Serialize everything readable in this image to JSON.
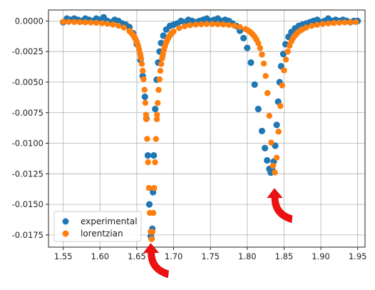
{
  "chart_data": {
    "type": "scatter",
    "title": "",
    "xlabel": "",
    "ylabel": "",
    "xlim": [
      1.53,
      1.96
    ],
    "ylim": [
      -0.0185,
      0.0009
    ],
    "x_ticks": [
      1.55,
      1.6,
      1.65,
      1.7,
      1.75,
      1.8,
      1.85,
      1.9,
      1.95
    ],
    "x_tick_labels": [
      "1.55",
      "1.60",
      "1.65",
      "1.70",
      "1.75",
      "1.80",
      "1.85",
      "1.90",
      "1.95"
    ],
    "y_ticks": [
      0.0,
      -0.0025,
      -0.005,
      -0.0075,
      -0.01,
      -0.0125,
      -0.015,
      -0.0175
    ],
    "y_tick_labels": [
      "0.0000",
      "-0.0025",
      "-0.0050",
      "-0.0075",
      "-0.0100",
      "-0.0125",
      "-0.0150",
      "-0.0175"
    ],
    "grid": true,
    "legend_position": "lower-left",
    "series": [
      {
        "name": "experimental",
        "color": "#1f77b4",
        "x": [
          1.55,
          1.555,
          1.56,
          1.565,
          1.57,
          1.575,
          1.58,
          1.585,
          1.59,
          1.595,
          1.6,
          1.605,
          1.61,
          1.615,
          1.62,
          1.625,
          1.63,
          1.635,
          1.64,
          1.645,
          1.65,
          1.655,
          1.658,
          1.661,
          1.663,
          1.665,
          1.667,
          1.669,
          1.67,
          1.671,
          1.672,
          1.673,
          1.675,
          1.677,
          1.679,
          1.681,
          1.683,
          1.686,
          1.69,
          1.695,
          1.7,
          1.705,
          1.71,
          1.715,
          1.72,
          1.725,
          1.73,
          1.735,
          1.74,
          1.745,
          1.75,
          1.755,
          1.76,
          1.765,
          1.77,
          1.775,
          1.78,
          1.785,
          1.79,
          1.795,
          1.8,
          1.805,
          1.81,
          1.815,
          1.82,
          1.824,
          1.827,
          1.83,
          1.832,
          1.834,
          1.836,
          1.838,
          1.84,
          1.842,
          1.844,
          1.846,
          1.849,
          1.852,
          1.856,
          1.86,
          1.865,
          1.87,
          1.875,
          1.88,
          1.885,
          1.89,
          1.895,
          1.9,
          1.905,
          1.91,
          1.915,
          1.92,
          1.925,
          1.93,
          1.935,
          1.94,
          1.945,
          1.95
        ],
        "y": [
          -0.0001,
          0.0002,
          0.0001,
          0.0002,
          0.0001,
          0.0,
          0.0002,
          0.0001,
          0.0,
          0.0002,
          0.0001,
          0.0003,
          0.0,
          -0.0001,
          0.0001,
          0.0,
          -0.0002,
          -0.0003,
          -0.0005,
          -0.001,
          -0.0019,
          -0.0032,
          -0.0045,
          -0.0062,
          -0.008,
          -0.011,
          -0.015,
          -0.0176,
          -0.0178,
          -0.017,
          -0.014,
          -0.011,
          -0.0072,
          -0.0048,
          -0.0034,
          -0.0025,
          -0.0018,
          -0.0012,
          -0.0007,
          -0.0004,
          -0.0003,
          -0.0002,
          0.0,
          -0.0001,
          0.0001,
          0.0,
          -0.0001,
          0.0,
          0.0001,
          0.0002,
          0.0,
          0.0001,
          0.0002,
          0.0,
          0.0001,
          0.0,
          -0.0002,
          -0.0004,
          -0.0008,
          -0.0014,
          -0.0022,
          -0.0034,
          -0.0052,
          -0.0072,
          -0.009,
          -0.0104,
          -0.0114,
          -0.0121,
          -0.0124,
          -0.0122,
          -0.0115,
          -0.0102,
          -0.0085,
          -0.0066,
          -0.005,
          -0.0037,
          -0.0027,
          -0.0019,
          -0.0013,
          -0.0009,
          -0.0006,
          -0.0004,
          -0.0003,
          -0.0002,
          -0.0001,
          0.0,
          0.0001,
          -0.0001,
          0.0,
          0.0002,
          0.0,
          0.0001,
          0.0,
          0.0001,
          0.0,
          -0.0001,
          0.0,
          0.0
        ]
      },
      {
        "name": "lorentzian",
        "color": "#ff7f0e",
        "model": "two-lorentzian-dips",
        "peaks": [
          {
            "center": 1.67,
            "depth": 0.0178,
            "hwhm": 0.0065
          },
          {
            "center": 1.837,
            "depth": 0.0124,
            "hwhm": 0.009
          }
        ]
      }
    ],
    "annotations": [
      {
        "type": "arrow",
        "color": "#ee1111",
        "points_to": "first-dip-minimum",
        "x": 1.669,
        "y": -0.0182
      },
      {
        "type": "arrow",
        "color": "#ee1111",
        "points_to": "second-dip-minimum",
        "x": 1.837,
        "y": -0.0137
      }
    ]
  }
}
